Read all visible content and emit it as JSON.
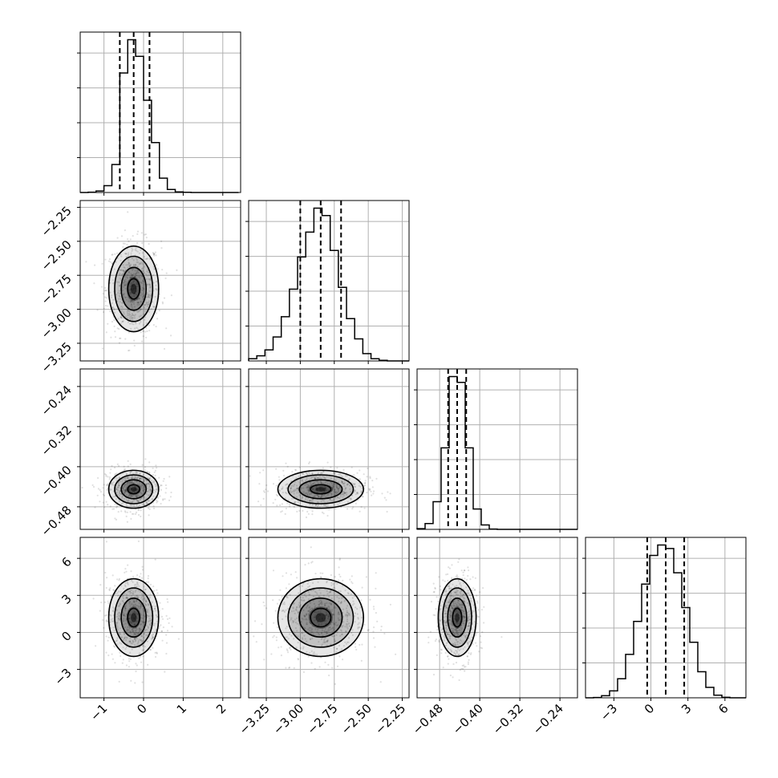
{
  "chart_data": {
    "type": "corner",
    "n_params": 4,
    "grid": true,
    "colors": {
      "ink": "#000000",
      "grid": "#b0b0b0",
      "background": "#ffffff"
    },
    "params": [
      {
        "range": [
          -1.6,
          2.45
        ],
        "ticks": [
          -1,
          0,
          1,
          2
        ],
        "tick_labels": [
          "−1",
          "0",
          "1",
          "2"
        ],
        "mean": -0.25,
        "sd": 0.3,
        "quantiles": [
          -0.6,
          -0.25,
          0.15
        ]
      },
      {
        "range": [
          -3.38,
          -2.2
        ],
        "ticks": [
          -3.25,
          -3.0,
          -2.75,
          -2.5,
          -2.25
        ],
        "tick_labels": [
          "−3.25",
          "−3.00",
          "−2.75",
          "−2.50",
          "−2.25"
        ],
        "mean": -2.85,
        "sd": 0.15,
        "quantiles": [
          -3.0,
          -2.85,
          -2.7
        ]
      },
      {
        "range": [
          -0.525,
          -0.205
        ],
        "ticks": [
          -0.48,
          -0.4,
          -0.32,
          -0.24
        ],
        "tick_labels": [
          "−0.48",
          "−0.40",
          "−0.32",
          "−0.24"
        ],
        "mean": -0.445,
        "sd": 0.018,
        "quantiles": [
          -0.463,
          -0.445,
          -0.427
        ]
      },
      {
        "range": [
          -5.3,
          7.7
        ],
        "ticks": [
          -3,
          0,
          3,
          6
        ],
        "tick_labels": [
          "−3",
          "0",
          "3",
          "6"
        ],
        "mean": 1.2,
        "sd": 1.5,
        "quantiles": [
          -0.3,
          1.2,
          2.7
        ]
      }
    ],
    "histograms": [
      {
        "param": 0,
        "bins": [
          -1.6,
          -1.4,
          -1.2,
          -1.0,
          -0.8,
          -0.6,
          -0.4,
          -0.2,
          0.0,
          0.2,
          0.4,
          0.6,
          0.8,
          1.0,
          1.2,
          1.4,
          1.6,
          1.8,
          2.0,
          2.2,
          2.4
        ],
        "counts": [
          0,
          2,
          10,
          45,
          185,
          790,
          1010,
          900,
          610,
          330,
          95,
          20,
          4,
          1,
          0,
          0,
          0,
          0,
          0,
          0
        ]
      },
      {
        "param": 1,
        "bins": [
          -3.38,
          -3.32,
          -3.26,
          -3.2,
          -3.14,
          -3.08,
          -3.02,
          -2.96,
          -2.9,
          -2.84,
          -2.78,
          -2.72,
          -2.66,
          -2.6,
          -2.54,
          -2.48,
          -2.42,
          -2.36,
          -2.3,
          -2.24,
          -2.2
        ],
        "counts": [
          12,
          28,
          60,
          130,
          240,
          390,
          565,
          700,
          830,
          790,
          600,
          400,
          230,
          120,
          40,
          12,
          3,
          0,
          0,
          0
        ]
      },
      {
        "param": 2,
        "bins": [
          -0.525,
          -0.509,
          -0.493,
          -0.477,
          -0.461,
          -0.445,
          -0.429,
          -0.413,
          -0.397,
          -0.381,
          -0.365,
          -0.349,
          -0.333,
          -0.317,
          -0.301,
          -0.285,
          -0.269,
          -0.253,
          -0.237,
          -0.221,
          -0.205
        ],
        "counts": [
          5,
          40,
          190,
          560,
          1050,
          1010,
          560,
          140,
          30,
          2,
          0,
          0,
          0,
          0,
          0,
          0,
          0,
          0,
          0,
          0
        ]
      },
      {
        "param": 3,
        "bins": [
          -5.3,
          -4.65,
          -4.0,
          -3.35,
          -2.7,
          -2.05,
          -1.4,
          -0.75,
          -0.1,
          0.55,
          1.2,
          1.85,
          2.5,
          3.15,
          3.8,
          4.45,
          5.1,
          5.75,
          6.4,
          7.05,
          7.7
        ],
        "counts": [
          0,
          2,
          12,
          40,
          110,
          250,
          440,
          655,
          820,
          880,
          860,
          720,
          520,
          320,
          150,
          60,
          15,
          3,
          0,
          0
        ]
      }
    ]
  }
}
